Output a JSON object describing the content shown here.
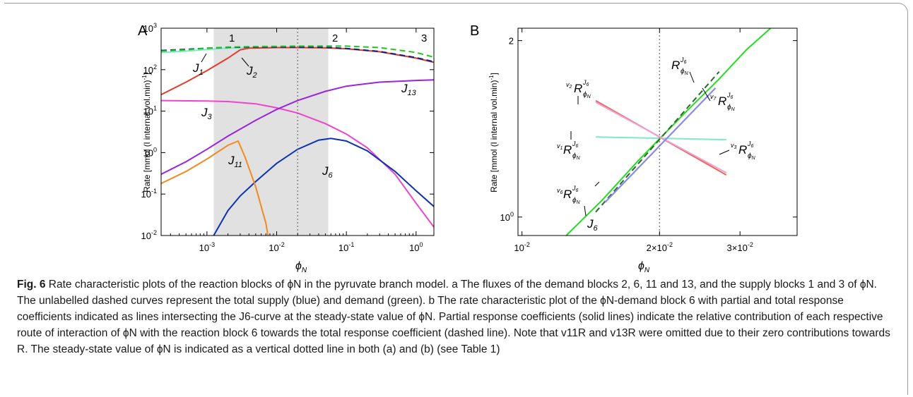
{
  "panelA": {
    "letter": "A",
    "ylabel": "Rate [mmol (l internal vol.min)",
    "ylabel_exp": "-1",
    "ylabel_end": "]",
    "xlabel_main": "ϕ",
    "xlabel_sub": "N",
    "region_labels": [
      "1",
      "2",
      "3"
    ],
    "xticks": [
      {
        "base": "10",
        "exp": "-3"
      },
      {
        "base": "10",
        "exp": "-2"
      },
      {
        "base": "10",
        "exp": "-1"
      },
      {
        "base": "10",
        "exp": "0"
      }
    ],
    "yticks": [
      {
        "base": "10",
        "exp": "-2"
      },
      {
        "base": "10",
        "exp": "-1"
      },
      {
        "base": "10",
        "exp": "0"
      },
      {
        "base": "10",
        "exp": "1"
      },
      {
        "base": "10",
        "exp": "2"
      },
      {
        "base": "10",
        "exp": "3"
      }
    ],
    "curve_labels": {
      "J1": {
        "main": "J",
        "sub": "1"
      },
      "J2": {
        "main": "J",
        "sub": "2"
      },
      "J3": {
        "main": "J",
        "sub": "3"
      },
      "J6": {
        "main": "J",
        "sub": "6"
      },
      "J11": {
        "main": "J",
        "sub": "11"
      },
      "J13": {
        "main": "J",
        "sub": "13"
      }
    }
  },
  "panelB": {
    "letter": "B",
    "ylabel": "Rate [mmol (l internal vol.min)",
    "ylabel_exp": "-1",
    "ylabel_end": "]",
    "xlabel_main": "ϕ",
    "xlabel_sub": "N",
    "xticks": [
      {
        "base": "10",
        "exp": "-2"
      },
      {
        "pre": "2×",
        "base": "10",
        "exp": "-2"
      },
      {
        "pre": "3×",
        "base": "10",
        "exp": "-2"
      }
    ],
    "yticks": [
      {
        "text": "10",
        "exp": "0"
      },
      {
        "text": "2",
        "exp": ""
      }
    ],
    "coef_labels": {
      "R": {
        "pre": "",
        "sup": "J",
        "supsub": "6",
        "sub": "ϕ",
        "subsub": "N"
      },
      "v2R": {
        "pre": "v",
        "presub": "2"
      },
      "v7R": {
        "pre": "v",
        "presub": "7"
      },
      "v1R": {
        "pre": "v",
        "presub": "1"
      },
      "v3R": {
        "pre": "v",
        "presub": "3"
      },
      "v6R": {
        "pre": "v",
        "presub": "6"
      }
    },
    "J6_label": {
      "main": "J",
      "sub": "6"
    }
  },
  "chart_data": [
    {
      "type": "line",
      "panel": "A",
      "xscale": "log",
      "yscale": "log",
      "xlim": [
        0.00022,
        1.8
      ],
      "ylim": [
        0.01,
        1000
      ],
      "shaded_region_x": [
        0.00125,
        0.055
      ],
      "steady_state_x": 0.02,
      "series": [
        {
          "name": "J1",
          "color": "#7fe8c8",
          "x": [
            0.00022,
            0.0005,
            0.001,
            0.002,
            0.004,
            0.01,
            0.02,
            0.05,
            0.1,
            0.3,
            1,
            1.8
          ],
          "y": [
            260,
            280,
            305,
            330,
            340,
            345,
            345,
            340,
            320,
            270,
            190,
            150
          ]
        },
        {
          "name": "J2",
          "color": "#e63a2a",
          "x": [
            0.00022,
            0.0005,
            0.001,
            0.002,
            0.003,
            0.004,
            0.01,
            0.02,
            0.05,
            0.1,
            0.3,
            1,
            1.8
          ],
          "y": [
            25,
            50,
            95,
            190,
            300,
            330,
            340,
            340,
            335,
            320,
            270,
            190,
            150
          ]
        },
        {
          "name": "J3",
          "color": "#ee44cc",
          "x": [
            0.00022,
            0.001,
            0.002,
            0.005,
            0.01,
            0.02,
            0.05,
            0.1,
            0.2,
            0.5,
            1,
            1.8
          ],
          "y": [
            18,
            17.5,
            17,
            15,
            12,
            9,
            5,
            2.8,
            1.3,
            0.3,
            0.06,
            0.016
          ]
        },
        {
          "name": "J6",
          "color": "#0b32b5",
          "x": [
            0.00125,
            0.002,
            0.003,
            0.005,
            0.01,
            0.02,
            0.04,
            0.06,
            0.1,
            0.2,
            0.5,
            1,
            1.8
          ],
          "y": [
            0.01,
            0.04,
            0.09,
            0.2,
            0.55,
            1.2,
            2.0,
            2.2,
            1.9,
            1.1,
            0.35,
            0.12,
            0.05
          ]
        },
        {
          "name": "J11",
          "color": "#f28a20",
          "x": [
            0.00022,
            0.0005,
            0.001,
            0.002,
            0.0028,
            0.0035,
            0.005,
            0.007,
            0.0075
          ],
          "y": [
            0.18,
            0.35,
            0.7,
            1.5,
            1.9,
            0.8,
            0.15,
            0.02,
            0.01
          ]
        },
        {
          "name": "J13",
          "color": "#9b22e0",
          "x": [
            0.00022,
            0.0005,
            0.001,
            0.002,
            0.005,
            0.01,
            0.02,
            0.05,
            0.1,
            0.3,
            1,
            1.8
          ],
          "y": [
            0.3,
            0.6,
            1.2,
            2.5,
            6,
            11,
            18,
            30,
            40,
            50,
            55,
            57
          ]
        },
        {
          "name": "supply",
          "color": "#0b1f8a",
          "dashed": true,
          "x": [
            0.00022,
            0.0005,
            0.001,
            0.002,
            0.004,
            0.01,
            0.02,
            0.05,
            0.1,
            0.3,
            1,
            1.8
          ],
          "y": [
            290,
            310,
            330,
            345,
            350,
            352,
            352,
            345,
            325,
            275,
            195,
            155
          ]
        },
        {
          "name": "demand",
          "color": "#22c422",
          "dashed": true,
          "x": [
            0.00022,
            0.0005,
            0.001,
            0.002,
            0.004,
            0.01,
            0.02,
            0.05,
            0.1,
            0.3,
            1,
            1.8
          ],
          "y": [
            280,
            300,
            330,
            350,
            360,
            365,
            370,
            372,
            370,
            340,
            260,
            200
          ]
        }
      ]
    },
    {
      "type": "line",
      "panel": "B",
      "xscale": "log",
      "yscale": "log",
      "xlim": [
        0.0098,
        0.04
      ],
      "ylim": [
        0.93,
        2.1
      ],
      "steady_state_x": 0.02,
      "series": [
        {
          "name": "J6",
          "color": "#22dd22",
          "x": [
            0.0125,
            0.015,
            0.018,
            0.02,
            0.023,
            0.027,
            0.031,
            0.035
          ],
          "y": [
            0.93,
            1.07,
            1.25,
            1.36,
            1.52,
            1.72,
            1.93,
            2.1
          ]
        },
        {
          "name": "R",
          "color": "#2a6a2a",
          "dashed": true,
          "x": [
            0.0145,
            0.027
          ],
          "y": [
            1.02,
            1.77
          ]
        },
        {
          "name": "v1R",
          "color": "#7fe8c8",
          "x": [
            0.0145,
            0.028
          ],
          "y": [
            1.37,
            1.355
          ]
        },
        {
          "name": "v2R",
          "color": "#e86a50",
          "x": [
            0.0145,
            0.028
          ],
          "y": [
            1.58,
            1.18
          ]
        },
        {
          "name": "v3R",
          "color": "#f0a0d8",
          "x": [
            0.0145,
            0.028
          ],
          "y": [
            1.57,
            1.19
          ]
        },
        {
          "name": "v6R",
          "color": "#8888ee",
          "x": [
            0.0152,
            0.0265
          ],
          "y": [
            1.06,
            1.66
          ]
        },
        {
          "name": "v7R",
          "color": "#8888ee",
          "x": [
            0.0152,
            0.0265
          ],
          "y": [
            1.06,
            1.66
          ]
        }
      ]
    }
  ],
  "caption": {
    "fig_label": "Fig. 6",
    "text": " Rate characteristic plots of the reaction blocks of ϕN in the pyruvate branch model. a The fluxes of the demand blocks 2, 6, 11 and 13, and the supply blocks 1 and 3 of ϕN. The unlabelled dashed curves represent the total supply (blue) and demand (green). b The rate characteristic plot of the ϕN-demand block 6 with partial and total response coefficients indicated as lines intersecting the J6-curve at the steady-state value of ϕN. Partial response coefficients (solid lines) indicate the relative contribution of each respective route of interaction of ϕN with the reaction block 6 towards the total response coefficient (dashed line). Note that v11R and v13R were omitted due to their zero contributions towards R. The steady-state value of ϕN is indicated as a vertical dotted line in both (a) and (b) (see Table 1)"
  }
}
